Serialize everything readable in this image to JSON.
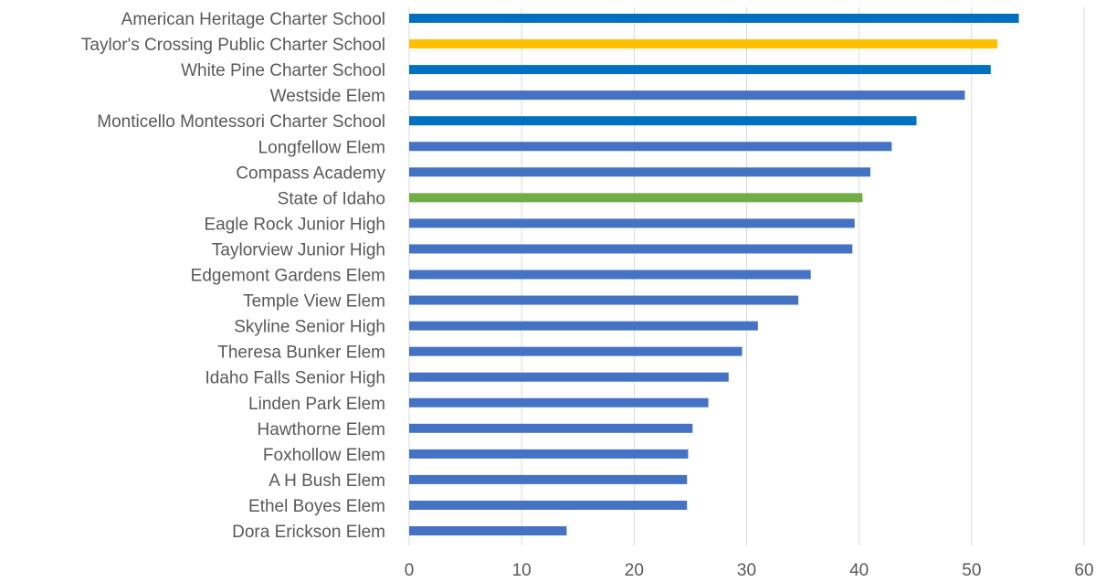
{
  "chart_data": {
    "type": "bar",
    "orientation": "horizontal",
    "title": "",
    "xlabel": "",
    "ylabel": "",
    "xlim": [
      0,
      60
    ],
    "xticks": [
      0,
      10,
      20,
      30,
      40,
      50,
      60
    ],
    "grid": "vertical",
    "legend": "none",
    "categories": [
      "American Heritage Charter School",
      "Taylor's Crossing Public Charter School",
      "White Pine Charter School",
      "Westside Elem",
      "Monticello Montessori Charter School",
      "Longfellow Elem",
      "Compass Academy",
      "State of Idaho",
      "Eagle Rock Junior High",
      "Taylorview Junior High",
      "Edgemont Gardens Elem",
      "Temple View Elem",
      "Skyline Senior High",
      "Theresa Bunker Elem",
      "Idaho Falls Senior High",
      "Linden Park Elem",
      "Hawthorne Elem",
      "Foxhollow Elem",
      "A H Bush Elem",
      "Ethel Boyes Elem",
      "Dora Erickson Elem"
    ],
    "values": [
      54.2,
      52.3,
      51.7,
      49.4,
      45.1,
      42.9,
      41.0,
      40.3,
      39.6,
      39.4,
      35.7,
      34.6,
      31.0,
      29.6,
      28.4,
      26.6,
      25.2,
      24.8,
      24.7,
      24.7,
      14.0
    ],
    "colors": [
      "#0070c0",
      "#ffc000",
      "#0070c0",
      "#4472c4",
      "#0070c0",
      "#4472c4",
      "#4472c4",
      "#70ad47",
      "#4472c4",
      "#4472c4",
      "#4472c4",
      "#4472c4",
      "#4472c4",
      "#4472c4",
      "#4472c4",
      "#4472c4",
      "#4472c4",
      "#4472c4",
      "#4472c4",
      "#4472c4",
      "#4472c4"
    ]
  }
}
